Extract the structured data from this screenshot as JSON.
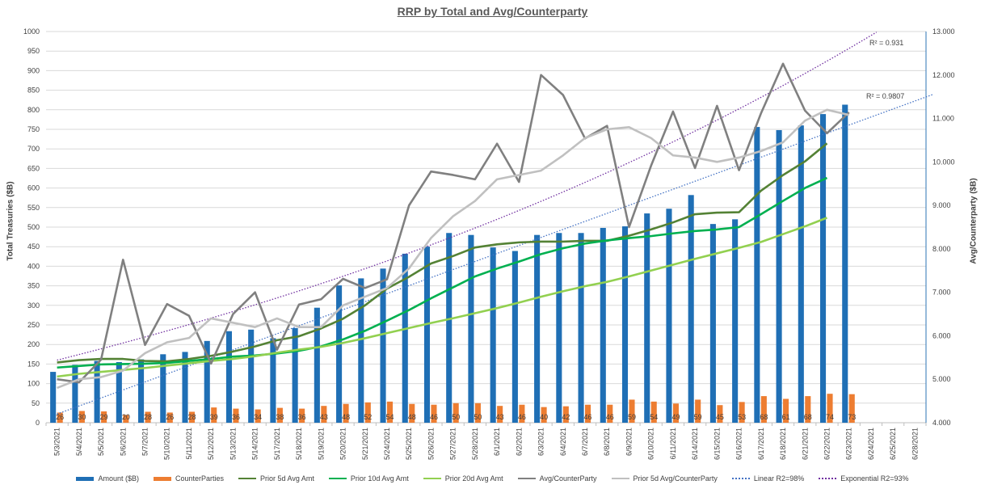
{
  "chart_data": {
    "type": "bar",
    "title": "RRP by Total and Avg/Counterparty",
    "ylabel": "Total Treasuries ($B)",
    "y2label": "Avg/Counterparty ($B)",
    "ylim": [
      0,
      1000
    ],
    "y2lim": [
      4.0,
      13.0
    ],
    "y_ticks": [
      "0",
      "50",
      "100",
      "150",
      "200",
      "250",
      "300",
      "350",
      "400",
      "450",
      "500",
      "550",
      "600",
      "650",
      "700",
      "750",
      "800",
      "850",
      "900",
      "950",
      "1000"
    ],
    "y2_ticks": [
      "4.000",
      "5.000",
      "6.000",
      "7.000",
      "8.000",
      "9.000",
      "10.000",
      "11.000",
      "12.000",
      "13.000"
    ],
    "grid": true,
    "legend_position": "bottom",
    "categories": [
      "5/3/2021",
      "5/4/2021",
      "5/5/2021",
      "5/6/2021",
      "5/7/2021",
      "5/10/2021",
      "5/11/2021",
      "5/12/2021",
      "5/13/2021",
      "5/14/2021",
      "5/17/2021",
      "5/18/2021",
      "5/19/2021",
      "5/20/2021",
      "5/21/2021",
      "5/24/2021",
      "5/25/2021",
      "5/26/2021",
      "5/27/2021",
      "5/28/2021",
      "6/1/2021",
      "6/2/2021",
      "6/3/2021",
      "6/4/2021",
      "6/7/2021",
      "6/8/2021",
      "6/9/2021",
      "6/10/2021",
      "6/11/2021",
      "6/14/2021",
      "6/15/2021",
      "6/16/2021",
      "6/17/2021",
      "6/18/2021",
      "6/21/2021",
      "6/22/2021",
      "6/23/2021",
      "6/24/2021",
      "6/25/2021",
      "6/28/2021"
    ],
    "series": [
      {
        "name": "Amount ($B)",
        "type": "bar",
        "axis": "left",
        "color": "#1f6fb5",
        "values": [
          130,
          148,
          158,
          155,
          162,
          175,
          181,
          209,
          234,
          238,
          216,
          242,
          294,
          351,
          369,
          394,
          432,
          450,
          485,
          480,
          448,
          439,
          480,
          485,
          485,
          498,
          502,
          535,
          547,
          582,
          508,
          520,
          756,
          748,
          760,
          789,
          813,
          null,
          null,
          null
        ]
      },
      {
        "name": "CounterParties",
        "type": "bar",
        "axis": "left",
        "color": "#ed7d31",
        "labels": true,
        "values": [
          26,
          30,
          29,
          20,
          28,
          26,
          28,
          39,
          36,
          34,
          38,
          36,
          43,
          48,
          52,
          54,
          48,
          46,
          50,
          50,
          43,
          46,
          40,
          42,
          46,
          46,
          59,
          54,
          49,
          59,
          45,
          53,
          68,
          61,
          68,
          74,
          73,
          null,
          null,
          null
        ]
      },
      {
        "name": "Prior 5d Avg Amt",
        "type": "line",
        "axis": "left",
        "color": "#548235",
        "values": [
          154,
          160,
          163,
          163,
          158,
          157,
          163,
          171,
          182,
          195,
          211,
          221,
          241,
          266,
          300,
          343,
          373,
          407,
          426,
          448,
          456,
          461,
          463,
          463,
          465,
          465,
          478,
          494,
          512,
          533,
          537,
          538,
          593,
          633,
          668,
          714,
          null,
          null,
          null,
          null
        ]
      },
      {
        "name": "Prior 10d Avg Amt",
        "type": "line",
        "axis": "left",
        "color": "#00b050",
        "values": [
          141,
          145,
          149,
          150,
          151,
          153,
          158,
          163,
          169,
          172,
          177,
          184,
          195,
          213,
          235,
          261,
          288,
          318,
          346,
          374,
          394,
          412,
          431,
          446,
          458,
          466,
          472,
          477,
          484,
          490,
          494,
          500,
          533,
          567,
          600,
          626,
          null,
          null,
          null,
          null
        ]
      },
      {
        "name": "Prior 20d Avg Amt",
        "type": "line",
        "axis": "left",
        "color": "#92d050",
        "values": [
          118,
          125,
          130,
          135,
          140,
          146,
          152,
          158,
          163,
          170,
          179,
          187,
          194,
          204,
          216,
          229,
          242,
          255,
          267,
          280,
          293,
          307,
          322,
          336,
          349,
          360,
          374,
          389,
          404,
          419,
          433,
          447,
          462,
          482,
          502,
          524,
          null,
          null,
          null,
          null
        ]
      },
      {
        "name": "Avg/CounterParty",
        "type": "line",
        "axis": "right",
        "color": "#808080",
        "values": [
          5.0,
          4.93,
          5.45,
          7.75,
          5.79,
          6.73,
          6.46,
          5.36,
          6.5,
          7.0,
          5.68,
          6.72,
          6.84,
          7.31,
          7.1,
          7.3,
          9.0,
          9.78,
          9.7,
          9.6,
          10.42,
          9.54,
          12.0,
          11.54,
          10.54,
          10.83,
          8.5,
          9.91,
          11.16,
          9.86,
          11.29,
          9.81,
          11.12,
          12.26,
          11.18,
          10.66,
          11.14,
          null,
          null,
          null
        ]
      },
      {
        "name": "Prior 5d Avg/CounterParty",
        "type": "line",
        "axis": "right",
        "color": "#c0c0c0",
        "values": [
          4.8,
          5.0,
          5.05,
          5.2,
          5.6,
          5.85,
          5.95,
          6.4,
          6.3,
          6.2,
          6.4,
          6.2,
          6.2,
          6.7,
          6.9,
          7.1,
          7.55,
          8.25,
          8.75,
          9.1,
          9.6,
          9.7,
          9.8,
          10.15,
          10.55,
          10.75,
          10.8,
          10.55,
          10.15,
          10.1,
          10.0,
          10.1,
          10.25,
          10.45,
          10.95,
          11.2,
          11.08,
          null,
          null,
          null
        ]
      },
      {
        "name": "Linear R2=98%",
        "type": "trend",
        "axis": "right",
        "color": "#4472c4",
        "from": [
          0,
          4.2
        ],
        "to": [
          39.8,
          11.55
        ],
        "r2_label": "R² = 0.9807"
      },
      {
        "name": "Exponential R2=93%",
        "type": "trend-exp",
        "axis": "right",
        "color": "#7030a0",
        "from": [
          0,
          5.44
        ],
        "to": [
          37.3,
          13.0
        ],
        "r2_label": "R² = 0.931"
      }
    ]
  }
}
